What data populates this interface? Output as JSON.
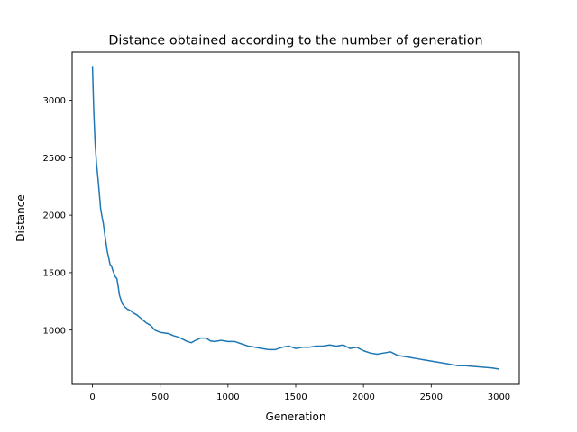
{
  "chart_data": {
    "type": "line",
    "title": "Distance obtained according to the number of generation",
    "xlabel": "Generation",
    "ylabel": "Distance",
    "xlim": [
      -150,
      3150
    ],
    "ylim": [
      527,
      3420
    ],
    "xticks": [
      0,
      500,
      1000,
      1500,
      2000,
      2500,
      3000
    ],
    "yticks": [
      1000,
      1500,
      2000,
      2500,
      3000
    ],
    "grid": false,
    "series": [
      {
        "color": "#1f77b4",
        "x": [
          0,
          5,
          10,
          20,
          30,
          40,
          50,
          60,
          70,
          80,
          90,
          100,
          110,
          120,
          130,
          140,
          150,
          160,
          170,
          180,
          190,
          200,
          220,
          240,
          260,
          280,
          300,
          330,
          360,
          400,
          430,
          460,
          500,
          530,
          560,
          600,
          630,
          650,
          700,
          730,
          760,
          800,
          840,
          870,
          900,
          950,
          1000,
          1050,
          1100,
          1150,
          1200,
          1250,
          1300,
          1350,
          1400,
          1450,
          1500,
          1550,
          1600,
          1650,
          1700,
          1750,
          1800,
          1850,
          1900,
          1950,
          2000,
          2050,
          2100,
          2150,
          2200,
          2250,
          2300,
          2350,
          2400,
          2450,
          2500,
          2550,
          2600,
          2650,
          2700,
          2750,
          2800,
          2850,
          2900,
          2950,
          3000
        ],
        "y": [
          3300,
          3100,
          2900,
          2620,
          2450,
          2330,
          2200,
          2060,
          1990,
          1930,
          1840,
          1760,
          1680,
          1630,
          1570,
          1560,
          1520,
          1490,
          1460,
          1450,
          1380,
          1300,
          1230,
          1200,
          1180,
          1170,
          1150,
          1130,
          1100,
          1060,
          1040,
          1000,
          980,
          975,
          970,
          950,
          940,
          930,
          900,
          890,
          910,
          930,
          930,
          905,
          900,
          910,
          900,
          900,
          880,
          860,
          850,
          840,
          830,
          830,
          850,
          860,
          840,
          850,
          850,
          860,
          860,
          870,
          860,
          870,
          840,
          850,
          820,
          800,
          790,
          800,
          810,
          780,
          770,
          760,
          750,
          740,
          730,
          720,
          710,
          700,
          690,
          690,
          685,
          680,
          675,
          670,
          660
        ]
      }
    ]
  }
}
